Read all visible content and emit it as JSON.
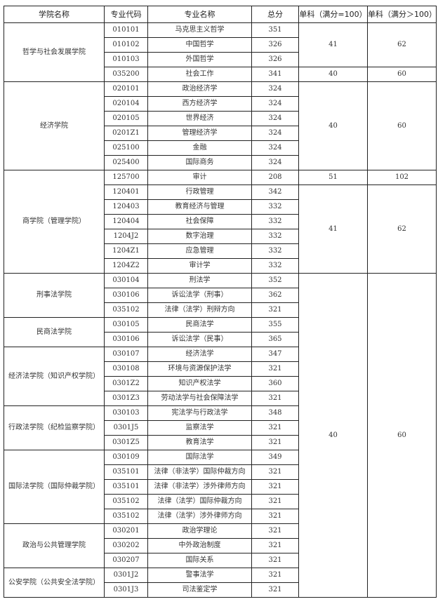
{
  "headers": [
    "学院名称",
    "专业代码",
    "专业名称",
    "总分",
    "单科（满分=100）",
    "单科（满分＞100）"
  ],
  "colleges": [
    {
      "name": "哲学与社会发展学院",
      "span": 4
    },
    {
      "name": "经济学院",
      "span": 6
    },
    {
      "name": "商学院（管理学院）",
      "span": 7
    },
    {
      "name": "刑事法学院",
      "span": 3
    },
    {
      "name": "民商法学院",
      "span": 2
    },
    {
      "name": "经济法学院（知识产权学院）",
      "span": 4
    },
    {
      "name": "行政法学院（纪检监察学院）",
      "span": 3
    },
    {
      "name": "国际法学院（国际仲裁学院）",
      "span": 5
    },
    {
      "name": "政治与公共管理学院",
      "span": 3
    },
    {
      "name": "公安学院（公共安全法学院）",
      "span": 2
    }
  ],
  "subject_groups": [
    {
      "s100": "41",
      "s_over100": "62",
      "span": 3
    },
    {
      "s100": "40",
      "s_over100": "60",
      "span": 1
    },
    {
      "s100": "40",
      "s_over100": "60",
      "span": 6
    },
    {
      "s100": "51",
      "s_over100": "102",
      "span": 1
    },
    {
      "s100": "41",
      "s_over100": "62",
      "span": 6
    },
    {
      "s100": "40",
      "s_over100": "60",
      "span": 22
    }
  ],
  "rows": [
    [
      "010101",
      "马克思主义哲学",
      "351"
    ],
    [
      "010102",
      "中国哲学",
      "326"
    ],
    [
      "010103",
      "外国哲学",
      "326"
    ],
    [
      "035200",
      "社会工作",
      "341"
    ],
    [
      "020101",
      "政治经济学",
      "324"
    ],
    [
      "020104",
      "西方经济学",
      "324"
    ],
    [
      "020105",
      "世界经济",
      "324"
    ],
    [
      "0201Z1",
      "管理经济学",
      "324"
    ],
    [
      "025100",
      "金融",
      "324"
    ],
    [
      "025400",
      "国际商务",
      "324"
    ],
    [
      "125700",
      "审计",
      "208"
    ],
    [
      "120401",
      "行政管理",
      "342"
    ],
    [
      "120403",
      "教育经济与管理",
      "332"
    ],
    [
      "120404",
      "社会保障",
      "332"
    ],
    [
      "1204J2",
      "数字治理",
      "332"
    ],
    [
      "1204Z1",
      "应急管理",
      "332"
    ],
    [
      "1204Z2",
      "审计学",
      "332"
    ],
    [
      "030104",
      "刑法学",
      "352"
    ],
    [
      "030106",
      "诉讼法学（刑事）",
      "362"
    ],
    [
      "035102",
      "法律（法学）刑辩方向",
      "321"
    ],
    [
      "030105",
      "民商法学",
      "355"
    ],
    [
      "030106",
      "诉讼法学（民事）",
      "365"
    ],
    [
      "030107",
      "经济法学",
      "347"
    ],
    [
      "030108",
      "环境与资源保护法学",
      "321"
    ],
    [
      "0301Z2",
      "知识产权法学",
      "360"
    ],
    [
      "0301Z3",
      "劳动法学与社会保障法学",
      "321"
    ],
    [
      "030103",
      "宪法学与行政法学",
      "348"
    ],
    [
      "0301J5",
      "监察法学",
      "321"
    ],
    [
      "0301Z5",
      "教育法学",
      "321"
    ],
    [
      "030109",
      "国际法学",
      "349"
    ],
    [
      "035101",
      "法律（非法学）国际仲裁方向",
      "321"
    ],
    [
      "035101",
      "法律（非法学）涉外律师方向",
      "321"
    ],
    [
      "035102",
      "法律（法学）国际仲裁方向",
      "321"
    ],
    [
      "035102",
      "法律（法学）涉外律师方向",
      "321"
    ],
    [
      "030201",
      "政治学理论",
      "321"
    ],
    [
      "030202",
      "中外政治制度",
      "321"
    ],
    [
      "030207",
      "国际关系",
      "321"
    ],
    [
      "0301J2",
      "警事法学",
      "321"
    ],
    [
      "0301J3",
      "司法鉴定学",
      "321"
    ]
  ]
}
